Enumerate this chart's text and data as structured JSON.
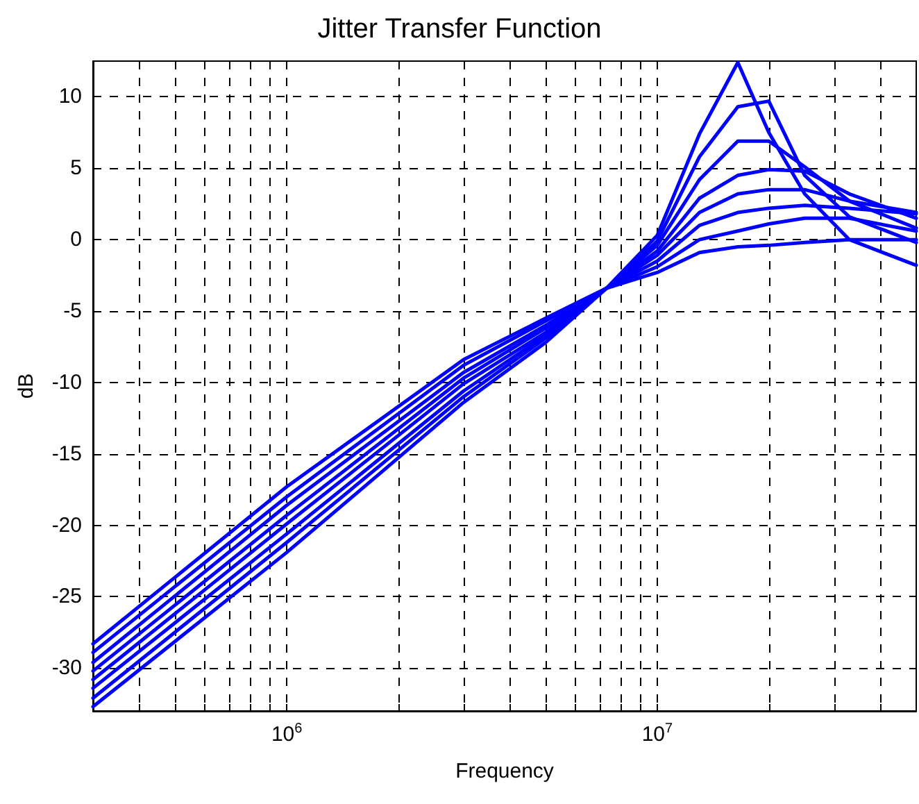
{
  "chart_data": {
    "type": "line",
    "title": "Jitter Transfer Function",
    "xlabel": "Frequency",
    "ylabel": "dB",
    "log": "x",
    "grid": true,
    "marker": "none",
    "line_style": "solid",
    "xlim": [
      300000,
      50000000
    ],
    "ylim": [
      -33,
      12.5
    ],
    "xticks": [
      {
        "value": 300000,
        "label": null
      },
      {
        "value": 400000,
        "label": null
      },
      {
        "value": 500000,
        "label": null
      },
      {
        "value": 600000,
        "label": null
      },
      {
        "value": 700000,
        "label": null
      },
      {
        "value": 800000,
        "label": null
      },
      {
        "value": 900000,
        "label": null
      },
      {
        "value": 1000000,
        "label": "10$^{6}$"
      },
      {
        "value": 2000000,
        "label": null
      },
      {
        "value": 3000000,
        "label": null
      },
      {
        "value": 4000000,
        "label": null
      },
      {
        "value": 5000000,
        "label": null
      },
      {
        "value": 6000000,
        "label": null
      },
      {
        "value": 7000000,
        "label": null
      },
      {
        "value": 8000000,
        "label": null
      },
      {
        "value": 9000000,
        "label": null
      },
      {
        "value": 10000000,
        "label": "10$^{7}$"
      },
      {
        "value": 20000000,
        "label": null
      },
      {
        "value": 30000000,
        "label": null
      },
      {
        "value": 40000000,
        "label": null
      }
    ],
    "yticks": [
      -30,
      -25,
      -20,
      -15,
      -10,
      -5,
      0,
      5,
      10
    ],
    "x": [
      300000,
      1000000,
      3000000,
      5000000,
      7300000,
      10000000,
      13000000,
      16500000,
      20000000,
      25000000,
      33000000,
      50000000
    ],
    "series": [
      {
        "color": "#0000ff",
        "values": [
          -28.3,
          -17.3,
          -8.4,
          -5.5,
          -3.4,
          -2.3,
          -0.9,
          -0.5,
          -0.4,
          -0.2,
          0.0,
          0.0
        ]
      },
      {
        "color": "#0000ff",
        "values": [
          -28.9,
          -18.0,
          -8.8,
          -5.7,
          -3.4,
          -1.9,
          0.0,
          0.6,
          1.1,
          1.5,
          1.5,
          0.6
        ]
      },
      {
        "color": "#0000ff",
        "values": [
          -29.6,
          -18.6,
          -9.3,
          -6.0,
          -3.4,
          -1.5,
          1.0,
          1.9,
          2.2,
          2.4,
          2.2,
          1.8
        ]
      },
      {
        "color": "#0000ff",
        "values": [
          -30.2,
          -19.3,
          -9.7,
          -6.2,
          -3.4,
          -1.1,
          1.9,
          3.2,
          3.5,
          3.5,
          2.7,
          1.9
        ]
      },
      {
        "color": "#0000ff",
        "values": [
          -30.8,
          -19.9,
          -10.1,
          -6.5,
          -3.4,
          -0.8,
          2.9,
          4.5,
          4.9,
          4.8,
          3.2,
          1.5
        ]
      },
      {
        "color": "#0000ff",
        "values": [
          -31.4,
          -20.6,
          -10.6,
          -6.7,
          -3.4,
          -0.4,
          4.2,
          6.9,
          6.9,
          5.1,
          2.7,
          0.8
        ]
      },
      {
        "color": "#0000ff",
        "values": [
          -32.1,
          -21.2,
          -11.0,
          -6.9,
          -3.4,
          -0.1,
          5.8,
          9.3,
          9.7,
          4.5,
          1.6,
          -0.2
        ]
      },
      {
        "color": "#0000ff",
        "values": [
          -32.7,
          -21.9,
          -11.4,
          -7.2,
          -3.4,
          0.3,
          7.4,
          12.4,
          7.5,
          3.2,
          0.0,
          -1.8
        ]
      }
    ]
  }
}
